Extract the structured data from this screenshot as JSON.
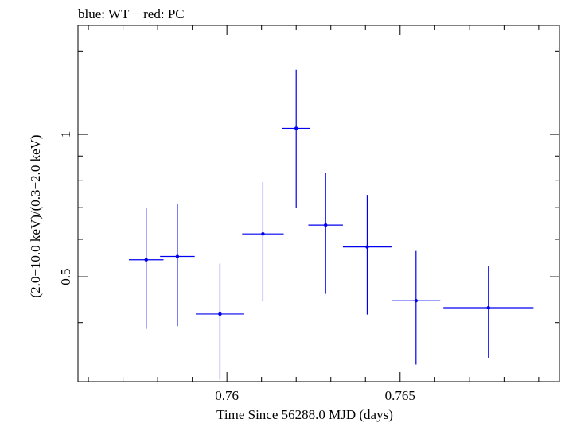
{
  "chart_data": {
    "type": "scatter",
    "title": "blue: WT − red: PC",
    "xlabel": "Time Since 56288.0 MJD (days)",
    "ylabel": "(2.0−10.0 keV)/(0.3−2.0 keV)",
    "xlim": [
      0.7557,
      0.7696
    ],
    "ylim": [
      0.3,
      1.7
    ],
    "y_scale": "log",
    "x_ticks": [
      0.756,
      0.757,
      0.758,
      0.759,
      0.76,
      0.761,
      0.762,
      0.763,
      0.764,
      0.765,
      0.766,
      0.767,
      0.768,
      0.769
    ],
    "x_tick_labels": [
      {
        "value": 0.76,
        "label": "0.76"
      },
      {
        "value": 0.765,
        "label": "0.765"
      }
    ],
    "y_ticks": [
      0.3,
      0.4,
      0.5,
      0.6,
      0.7,
      0.8,
      0.9,
      1.0,
      1.5
    ],
    "y_tick_labels": [
      {
        "value": 0.5,
        "label": "0.5"
      },
      {
        "value": 1.0,
        "label": "1"
      }
    ],
    "series": [
      {
        "color": "#0000ee",
        "points": [
          {
            "x": 0.75767,
            "xerr_lo": 0.0005,
            "xerr_hi": 0.0005,
            "y": 0.543,
            "ylo": 0.388,
            "yhi": 0.7
          },
          {
            "x": 0.75857,
            "xerr_lo": 0.0005,
            "xerr_hi": 0.0005,
            "y": 0.552,
            "ylo": 0.393,
            "yhi": 0.712
          },
          {
            "x": 0.7598,
            "xerr_lo": 0.0007,
            "xerr_hi": 0.0007,
            "y": 0.417,
            "ylo": 0.303,
            "yhi": 0.533
          },
          {
            "x": 0.76104,
            "xerr_lo": 0.0006,
            "xerr_hi": 0.0006,
            "y": 0.616,
            "ylo": 0.443,
            "yhi": 0.793
          },
          {
            "x": 0.762,
            "xerr_lo": 0.0004,
            "xerr_hi": 0.0004,
            "y": 1.03,
            "ylo": 0.7,
            "yhi": 1.37
          },
          {
            "x": 0.76285,
            "xerr_lo": 0.0005,
            "xerr_hi": 0.0005,
            "y": 0.643,
            "ylo": 0.46,
            "yhi": 0.83
          },
          {
            "x": 0.76405,
            "xerr_lo": 0.0007,
            "xerr_hi": 0.0007,
            "y": 0.578,
            "ylo": 0.416,
            "yhi": 0.745
          },
          {
            "x": 0.76546,
            "xerr_lo": 0.0007,
            "xerr_hi": 0.0007,
            "y": 0.445,
            "ylo": 0.326,
            "yhi": 0.567
          },
          {
            "x": 0.76755,
            "xerr_lo": 0.0013,
            "xerr_hi": 0.0013,
            "y": 0.43,
            "ylo": 0.337,
            "yhi": 0.527
          }
        ]
      }
    ]
  }
}
